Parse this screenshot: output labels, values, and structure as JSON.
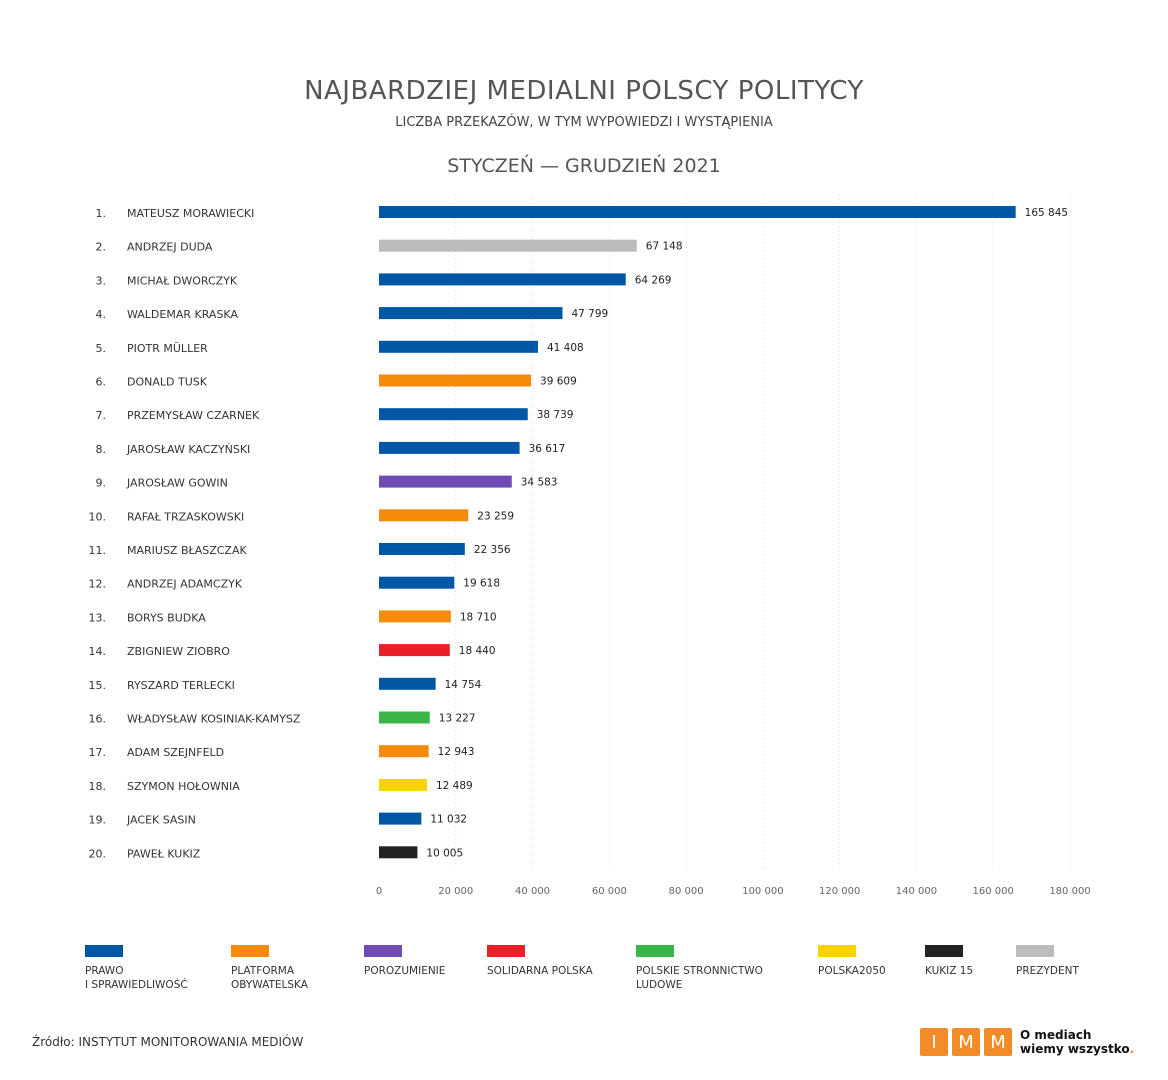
{
  "header": {
    "title": "NAJBARDZIEJ MEDIALNI POLSCY POLITYCY",
    "subtitle": "LICZBA PRZEKAZÓW, W TYM WYPOWIEDZI I WYSTĄPIENIA",
    "period": "STYCZEŃ — GRUDZIEŃ 2021"
  },
  "colors": {
    "PiS": "#0057a5",
    "PO": "#f58a0b",
    "Porozumienie": "#6e4bb5",
    "SP": "#e8202a",
    "PSL": "#3bb54a",
    "Polska2050": "#f8d300",
    "Kukiz15": "#222222",
    "Prezydent": "#bcbcbe"
  },
  "chart_data": {
    "type": "bar",
    "orientation": "horizontal",
    "title": "NAJBARDZIEJ MEDIALNI POLSCY POLITYCY",
    "xlim": [
      0,
      180000
    ],
    "xticks": [
      0,
      20000,
      40000,
      60000,
      80000,
      100000,
      120000,
      140000,
      160000,
      180000
    ],
    "xtick_labels": [
      "0",
      "20 000",
      "40 000",
      "60 000",
      "80 000",
      "100 000",
      "120 000",
      "140 000",
      "160 000",
      "180 000"
    ],
    "grid": "vertical dotted",
    "ranks": [
      "1.",
      "2.",
      "3.",
      "4.",
      "5.",
      "6.",
      "7.",
      "8.",
      "9.",
      "10.",
      "11.",
      "12.",
      "13.",
      "14.",
      "15.",
      "16.",
      "17.",
      "18.",
      "19.",
      "20."
    ],
    "categories": [
      "MATEUSZ MORAWIECKI",
      "ANDRZEJ DUDA",
      "MICHAŁ DWORCZYK",
      "WALDEMAR KRASKA",
      "PIOTR MÜLLER",
      "DONALD TUSK",
      "PRZEMYSŁAW CZARNEK",
      "JAROSŁAW KACZYŃSKI",
      "JAROSŁAW GOWIN",
      "RAFAŁ TRZASKOWSKI",
      "MARIUSZ BŁASZCZAK",
      "ANDRZEJ ADAMCZYK",
      "BORYS BUDKA",
      "ZBIGNIEW ZIOBRO",
      "RYSZARD TERLECKI",
      "WŁADYSŁAW KOSINIAK-KAMYSZ",
      "ADAM SZEJNFELD",
      "SZYMON HOŁOWNIA",
      "JACEK SASIN",
      "PAWEŁ KUKIZ"
    ],
    "values": [
      165845,
      67148,
      64269,
      47799,
      41408,
      39609,
      38739,
      36617,
      34583,
      23259,
      22356,
      19618,
      18710,
      18440,
      14754,
      13227,
      12943,
      12489,
      11032,
      10005
    ],
    "value_labels": [
      "165 845",
      "67 148",
      "64 269",
      "47 799",
      "41 408",
      "39 609",
      "38 739",
      "36 617",
      "34 583",
      "23 259",
      "22 356",
      "19 618",
      "18 710",
      "18 440",
      "14 754",
      "13 227",
      "12 943",
      "12 489",
      "11 032",
      "10 005"
    ],
    "parties": [
      "PiS",
      "Prezydent",
      "PiS",
      "PiS",
      "PiS",
      "PO",
      "PiS",
      "PiS",
      "Porozumienie",
      "PO",
      "PiS",
      "PiS",
      "PO",
      "SP",
      "PiS",
      "PSL",
      "PO",
      "Polska2050",
      "PiS",
      "Kukiz15"
    ],
    "legend_position": "bottom"
  },
  "legend": [
    {
      "key": "PiS",
      "label": "PRAWO\nI SPRAWIEDLIWOŚĆ"
    },
    {
      "key": "PO",
      "label": "PLATFORMA\nOBYWATELSKA"
    },
    {
      "key": "Porozumienie",
      "label": "POROZUMIENIE"
    },
    {
      "key": "SP",
      "label": "SOLIDARNA POLSKA"
    },
    {
      "key": "PSL",
      "label": "POLSKIE STRONNICTWO\nLUDOWE"
    },
    {
      "key": "Polska2050",
      "label": "POLSKA2050"
    },
    {
      "key": "Kukiz15",
      "label": "KUKIZ 15"
    },
    {
      "key": "Prezydent",
      "label": "PREZYDENT"
    }
  ],
  "footer": {
    "source": "Źródło: INSTYTUT MONITOROWANIA MEDIÓW",
    "logo_letters": [
      "I",
      "M",
      "M"
    ],
    "tagline_1": "O mediach",
    "tagline_2": "wiemy wszystko",
    "tagline_dot": "."
  }
}
